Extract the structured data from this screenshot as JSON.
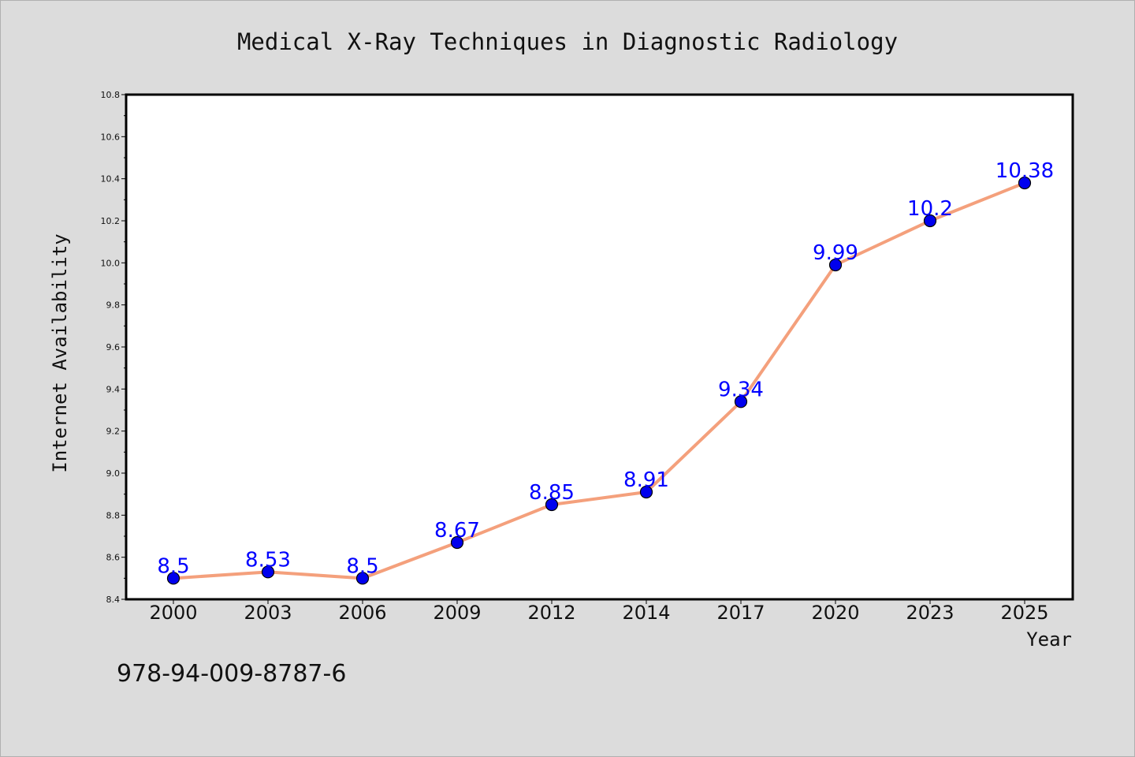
{
  "chart_data": {
    "type": "line",
    "title": "Medical X-Ray Techniques in Diagnostic Radiology",
    "xlabel": "Year",
    "ylabel": "Internet Availability",
    "categories": [
      "2000",
      "2003",
      "2006",
      "2009",
      "2012",
      "2014",
      "2017",
      "2020",
      "2023",
      "2025"
    ],
    "series": [
      {
        "values": [
          8.5,
          8.53,
          8.5,
          8.67,
          8.85,
          8.91,
          9.34,
          9.99,
          10.2,
          10.38
        ],
        "data_labels": [
          "8.5",
          "8.53",
          "8.5",
          "8.67",
          "8.85",
          "8.91",
          "9.34",
          "9.99",
          "10.2",
          "10.38"
        ]
      }
    ],
    "ylim": [
      8.4,
      10.8
    ],
    "yticks": [
      "8.4",
      "8.6",
      "8.8",
      "9.0",
      "9.2",
      "9.4",
      "9.6",
      "9.8",
      "10.0",
      "10.2",
      "10.4",
      "10.6",
      "10.8"
    ],
    "grid": false,
    "legend": "none",
    "colors": {
      "line": "#f4a07c",
      "marker": "#0000ee",
      "data_label": "#0000ff",
      "background": "#dcdcdc",
      "plot_background": "#ffffff"
    }
  },
  "footer": {
    "isbn": "978-94-009-8787-6"
  }
}
